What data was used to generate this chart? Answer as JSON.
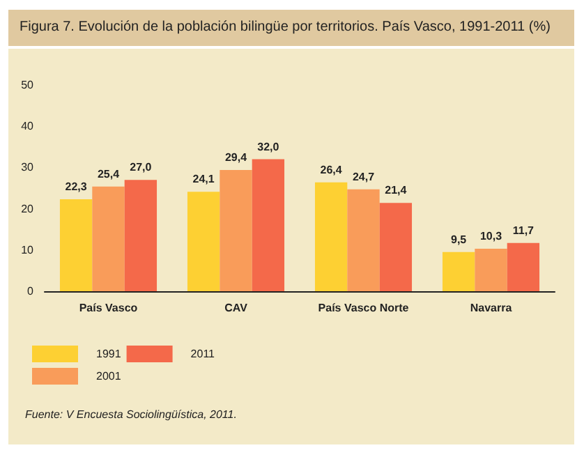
{
  "chart_data": {
    "type": "bar",
    "title": "Figura 7. Evolución de la población bilingüe por territorios. País Vasco, 1991-2011 (%)",
    "categories": [
      "País Vasco",
      "CAV",
      "País Vasco Norte",
      "Navarra"
    ],
    "series": [
      {
        "name": "1991",
        "color": "#fdd033",
        "values": [
          22.3,
          24.1,
          26.4,
          9.5
        ],
        "value_labels": [
          "22,3",
          "24,1",
          "26,4",
          "9,5"
        ]
      },
      {
        "name": "2001",
        "color": "#f99c5a",
        "values": [
          25.4,
          29.4,
          24.7,
          10.3
        ],
        "value_labels": [
          "25,4",
          "29,4",
          "24,7",
          "10,3"
        ]
      },
      {
        "name": "2011",
        "color": "#f4694a",
        "values": [
          27.0,
          32.0,
          21.4,
          11.7
        ],
        "value_labels": [
          "27,0",
          "32,0",
          "21,4",
          "11,7"
        ]
      }
    ],
    "ylim": [
      0,
      50
    ],
    "yticks": [
      0,
      10,
      20,
      30,
      40,
      50
    ],
    "grid": false,
    "legend": "bottom left",
    "annotations": [
      "Fuente: V Encuesta Sociolingüística, 2011."
    ]
  }
}
